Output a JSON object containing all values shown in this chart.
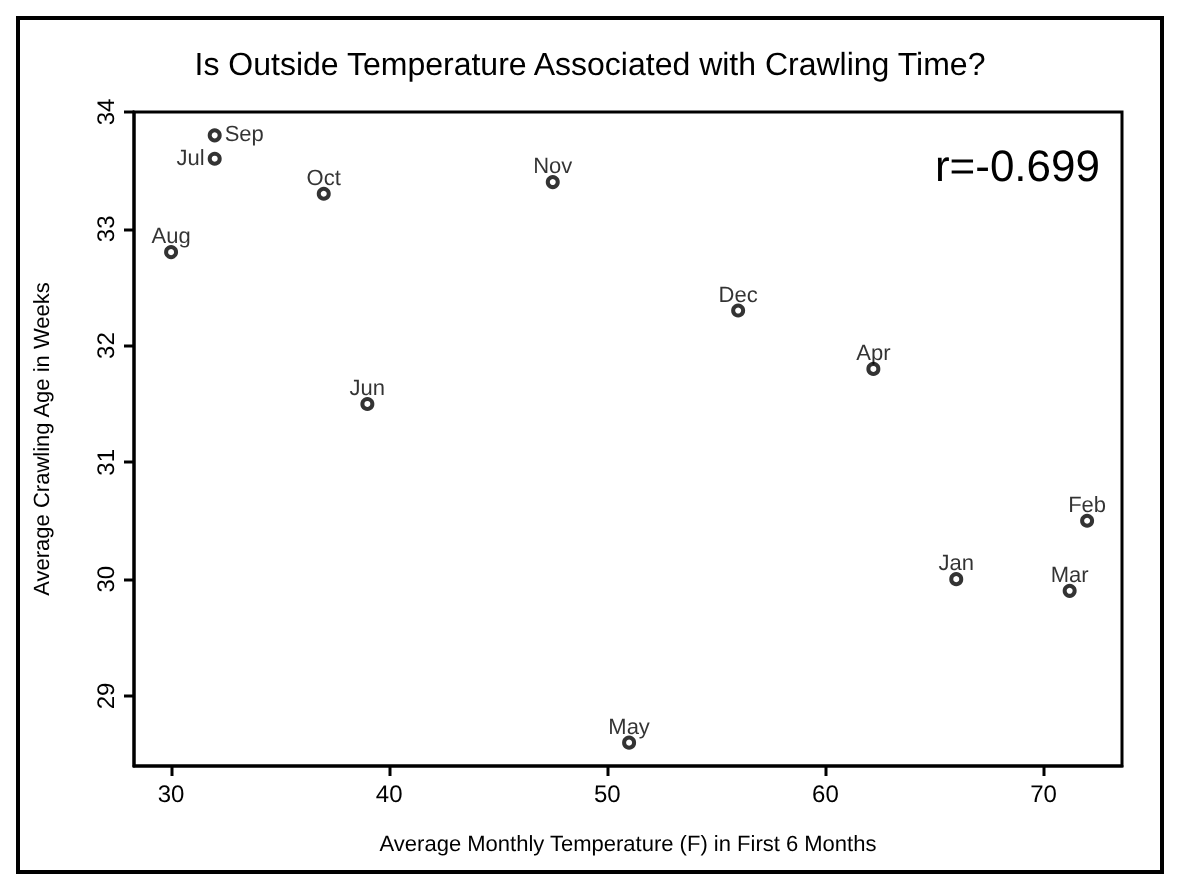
{
  "chart_data": {
    "type": "scatter",
    "title": "Is Outside Temperature Associated with Crawling Time?",
    "xlabel": "Average Monthly Temperature (F) in First 6 Months",
    "ylabel": "Average Crawling Age in Weeks",
    "x": [
      66,
      72,
      71.2,
      62.2,
      51,
      39,
      32,
      30,
      32,
      37,
      47.5,
      56
    ],
    "values": [
      30.0,
      30.5,
      29.9,
      31.8,
      28.6,
      31.5,
      33.6,
      32.8,
      33.8,
      33.3,
      33.4,
      32.3
    ],
    "color": "#000000",
    "marker": "circle",
    "grid": false,
    "xlim": [
      28.3,
      73.6
    ],
    "xticks": [
      30,
      40,
      50,
      60,
      70
    ],
    "ylim": [
      28.4,
      34
    ],
    "yticks": [
      29,
      30,
      31,
      32,
      33,
      34
    ],
    "annotations": [
      {
        "text": "Jan",
        "x": 66,
        "y": 30.0
      },
      {
        "text": "Feb",
        "x": 72,
        "y": 30.5
      },
      {
        "text": "Mar",
        "x": 71.2,
        "y": 29.9
      },
      {
        "text": "Apr",
        "x": 62.2,
        "y": 31.8
      },
      {
        "text": "May",
        "x": 51,
        "y": 28.6
      },
      {
        "text": "Jun",
        "x": 39,
        "y": 31.5
      },
      {
        "text": "Jul",
        "x": 32,
        "y": 33.6
      },
      {
        "text": "Aug",
        "x": 30,
        "y": 32.8
      },
      {
        "text": "Sep",
        "x": 32,
        "y": 33.8
      },
      {
        "text": "Oct",
        "x": 37,
        "y": 33.3
      },
      {
        "text": "Nov",
        "x": 47.5,
        "y": 33.4
      },
      {
        "text": "Dec",
        "x": 56,
        "y": 32.3
      },
      "r=-0.699"
    ]
  }
}
